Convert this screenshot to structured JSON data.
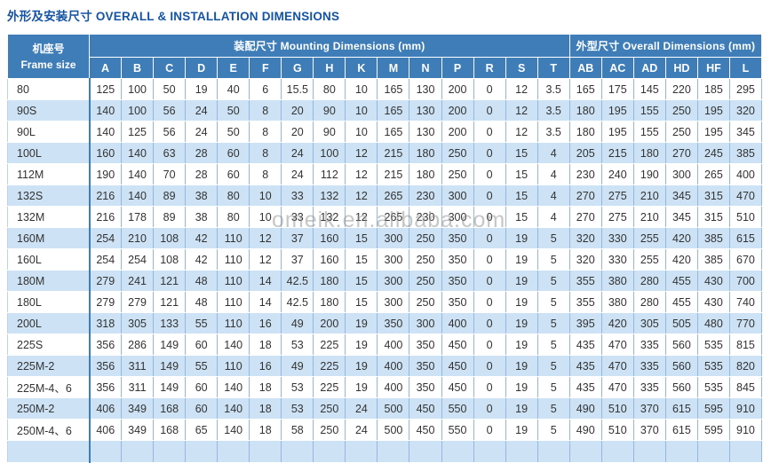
{
  "title": "外形及安装尺寸 OVERALL & INSTALLATION DIMENSIONS",
  "watermark": "omeik.en.alibaba.com",
  "colors": {
    "header_bg": "#3e7db8",
    "row_alt": "#cde2f4",
    "title_text": "#1553a3",
    "cell_border": "#8fb9dd",
    "cell_text": "#333333",
    "watermark_text": "#8f8f8f"
  },
  "table": {
    "frame_header": {
      "zh": "机座号",
      "en": "Frame size"
    },
    "groups": [
      {
        "label": "装配尺寸 Mounting Dimensions (mm)",
        "columns": [
          "A",
          "B",
          "C",
          "D",
          "E",
          "F",
          "G",
          "H",
          "K",
          "M",
          "N",
          "P",
          "R",
          "S",
          "T"
        ]
      },
      {
        "label": "外型尺寸 Overall Dimensions (mm)",
        "columns": [
          "AB",
          "AC",
          "AD",
          "HD",
          "HF",
          "L"
        ]
      }
    ],
    "rows": [
      {
        "frame": "80",
        "values": [
          125,
          100,
          50,
          19,
          40,
          6,
          15.5,
          80,
          10,
          165,
          130,
          200,
          0,
          12,
          3.5,
          165,
          175,
          145,
          220,
          185,
          295
        ]
      },
      {
        "frame": "90S",
        "values": [
          140,
          100,
          56,
          24,
          50,
          8,
          20,
          90,
          10,
          165,
          130,
          200,
          0,
          12,
          3.5,
          180,
          195,
          155,
          250,
          195,
          320
        ]
      },
      {
        "frame": "90L",
        "values": [
          140,
          125,
          56,
          24,
          50,
          8,
          20,
          90,
          10,
          165,
          130,
          200,
          0,
          12,
          3.5,
          180,
          195,
          155,
          250,
          195,
          345
        ]
      },
      {
        "frame": "100L",
        "values": [
          160,
          140,
          63,
          28,
          60,
          8,
          24,
          100,
          12,
          215,
          180,
          250,
          0,
          15,
          4,
          205,
          215,
          180,
          270,
          245,
          385
        ]
      },
      {
        "frame": "112M",
        "values": [
          190,
          140,
          70,
          28,
          60,
          8,
          24,
          112,
          12,
          215,
          180,
          250,
          0,
          15,
          4,
          230,
          240,
          190,
          300,
          265,
          400
        ]
      },
      {
        "frame": "132S",
        "values": [
          216,
          140,
          89,
          38,
          80,
          10,
          33,
          132,
          12,
          265,
          230,
          300,
          0,
          15,
          4,
          270,
          275,
          210,
          345,
          315,
          470
        ]
      },
      {
        "frame": "132M",
        "values": [
          216,
          178,
          89,
          38,
          80,
          10,
          33,
          132,
          12,
          265,
          230,
          300,
          0,
          15,
          4,
          270,
          275,
          210,
          345,
          315,
          510
        ]
      },
      {
        "frame": "160M",
        "values": [
          254,
          210,
          108,
          42,
          110,
          12,
          37,
          160,
          15,
          300,
          250,
          350,
          0,
          19,
          5,
          320,
          330,
          255,
          420,
          385,
          615
        ]
      },
      {
        "frame": "160L",
        "values": [
          254,
          254,
          108,
          42,
          110,
          12,
          37,
          160,
          15,
          300,
          250,
          350,
          0,
          19,
          5,
          320,
          330,
          255,
          420,
          385,
          670
        ]
      },
      {
        "frame": "180M",
        "values": [
          279,
          241,
          121,
          48,
          110,
          14,
          42.5,
          180,
          15,
          300,
          250,
          350,
          0,
          19,
          5,
          355,
          380,
          280,
          455,
          430,
          700
        ]
      },
      {
        "frame": "180L",
        "values": [
          279,
          279,
          121,
          48,
          110,
          14,
          42.5,
          180,
          15,
          300,
          250,
          350,
          0,
          19,
          5,
          355,
          380,
          280,
          455,
          430,
          740
        ]
      },
      {
        "frame": "200L",
        "values": [
          318,
          305,
          133,
          55,
          110,
          16,
          49,
          200,
          19,
          350,
          300,
          400,
          0,
          19,
          5,
          395,
          420,
          305,
          505,
          480,
          770
        ]
      },
      {
        "frame": "225S",
        "values": [
          356,
          286,
          149,
          60,
          140,
          18,
          53,
          225,
          19,
          400,
          350,
          450,
          0,
          19,
          5,
          435,
          470,
          335,
          560,
          535,
          815
        ]
      },
      {
        "frame": "225M-2",
        "values": [
          356,
          311,
          149,
          55,
          110,
          16,
          49,
          225,
          19,
          400,
          350,
          450,
          0,
          19,
          5,
          435,
          470,
          335,
          560,
          535,
          820
        ]
      },
      {
        "frame": "225M-4、6",
        "values": [
          356,
          311,
          149,
          60,
          140,
          18,
          53,
          225,
          19,
          400,
          350,
          450,
          0,
          19,
          5,
          435,
          470,
          335,
          560,
          535,
          845
        ]
      },
      {
        "frame": "250M-2",
        "values": [
          406,
          349,
          168,
          60,
          140,
          18,
          53,
          250,
          24,
          500,
          450,
          550,
          0,
          19,
          5,
          490,
          510,
          370,
          615,
          595,
          910
        ]
      },
      {
        "frame": "250M-4、6",
        "values": [
          406,
          349,
          168,
          65,
          140,
          18,
          58,
          250,
          24,
          500,
          450,
          550,
          0,
          19,
          5,
          490,
          510,
          370,
          615,
          595,
          910
        ]
      }
    ]
  }
}
